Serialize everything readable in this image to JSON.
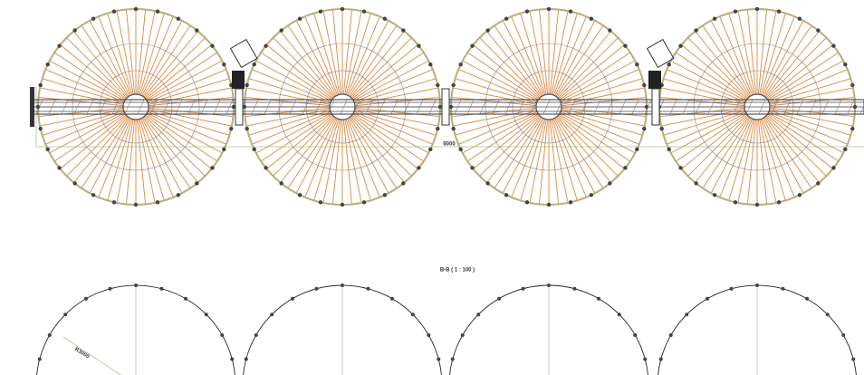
{
  "section_label": "B-B ( 1 : 100 )",
  "dimensions": {
    "span": "6000",
    "radius": "R3000"
  }
}
